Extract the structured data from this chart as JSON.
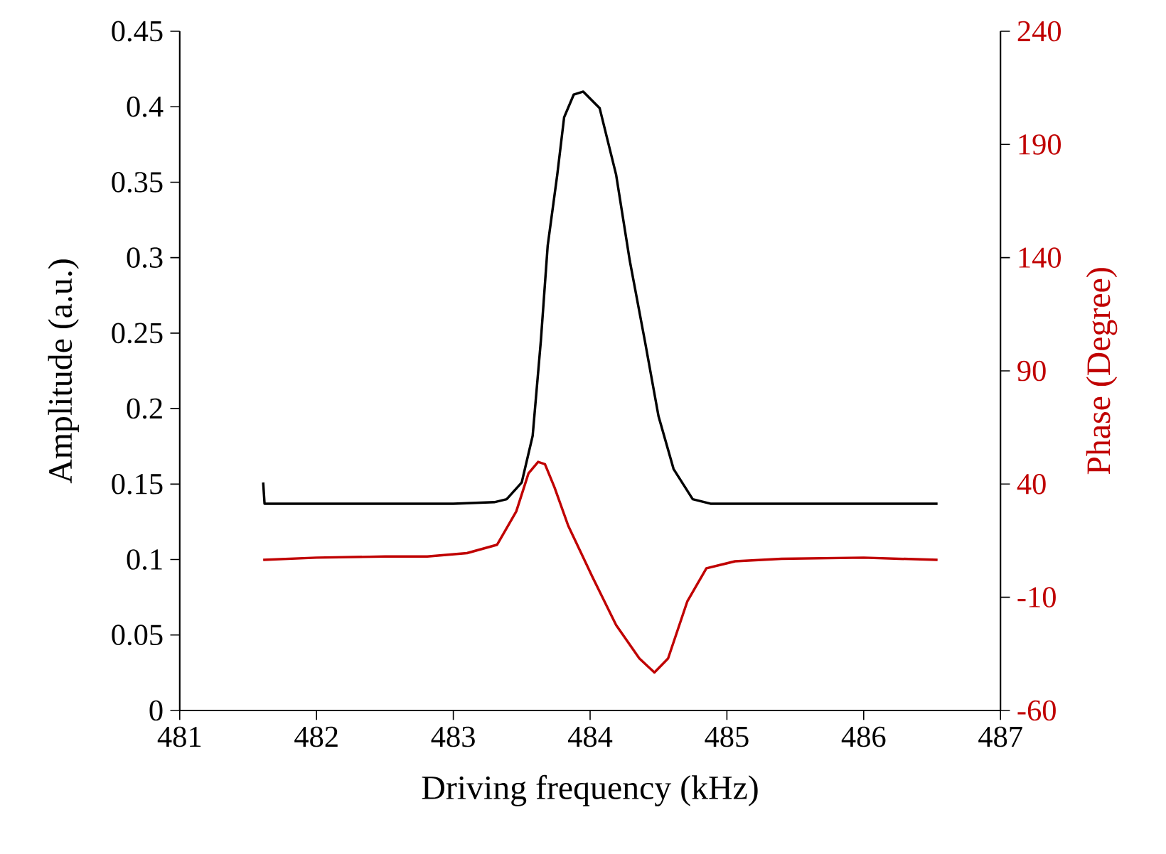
{
  "chart_data": {
    "type": "line",
    "xlabel": "Driving frequency (kHz)",
    "ylabel": "Amplitude (a.u.)",
    "y2label": "Phase (Degree)",
    "xlim": [
      481,
      487
    ],
    "xticks": [
      481,
      482,
      483,
      484,
      485,
      486,
      487
    ],
    "ylim": [
      0,
      0.45
    ],
    "yticks": [
      0,
      0.05,
      0.1,
      0.15,
      0.2,
      0.25,
      0.3,
      0.35,
      0.4,
      0.45
    ],
    "y2lim": [
      -60,
      240
    ],
    "y2ticks": [
      -60,
      -10,
      40,
      90,
      140,
      190,
      240
    ],
    "marker": "none",
    "line_style": "solid",
    "series": [
      {
        "color": "#000000",
        "x": [
          481.61,
          481.62,
          482.0,
          482.5,
          483.0,
          483.3,
          483.39,
          483.5,
          483.58,
          483.64,
          483.69,
          483.76,
          483.81,
          483.88,
          483.95,
          484.07,
          484.19,
          484.29,
          484.4,
          484.5,
          484.61,
          484.75,
          484.88,
          485.5,
          486.0,
          486.54
        ],
        "values": [
          0.151,
          0.137,
          0.137,
          0.137,
          0.137,
          0.138,
          0.14,
          0.151,
          0.182,
          0.245,
          0.308,
          0.355,
          0.393,
          0.408,
          0.41,
          0.399,
          0.355,
          0.298,
          0.245,
          0.195,
          0.16,
          0.14,
          0.137,
          0.137,
          0.137,
          0.137
        ]
      },
      {
        "color": "#c00000",
        "axis": "y2",
        "x": [
          481.61,
          482.0,
          482.5,
          482.81,
          483.1,
          483.32,
          483.46,
          483.55,
          483.62,
          483.67,
          483.74,
          483.84,
          484.02,
          484.19,
          484.36,
          484.47,
          484.57,
          484.71,
          484.85,
          485.06,
          485.4,
          486.0,
          486.54
        ],
        "values": [
          6.5,
          7.5,
          8.0,
          8.0,
          9.5,
          13.2,
          27.9,
          44.8,
          49.8,
          48.8,
          38.5,
          21.6,
          -1.4,
          -22.3,
          -37.0,
          -43.2,
          -37.0,
          -11.9,
          2.8,
          5.9,
          7.0,
          7.5,
          6.5
        ]
      }
    ]
  }
}
